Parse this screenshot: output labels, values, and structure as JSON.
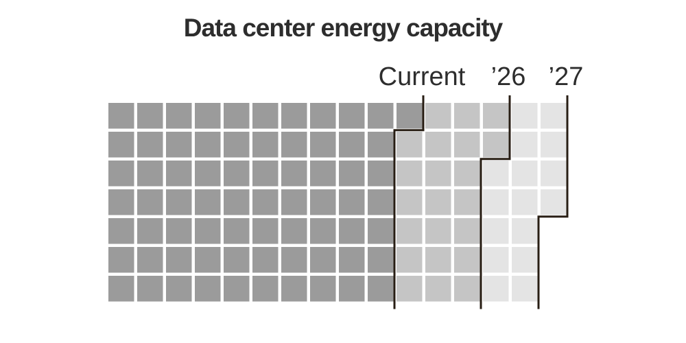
{
  "title": "Data center energy capacity",
  "colors": {
    "background": "#ffffff",
    "text": "#2d2d2d",
    "boundary_line": "#281e14",
    "current": "#9b9b9b",
    "y2026": "#c5c5c5",
    "y2027": "#e4e4e4"
  },
  "chart_data": {
    "type": "waffle",
    "title": "Data center energy capacity",
    "grid": {
      "rows": 7,
      "columns": 16
    },
    "legend_position": "top",
    "series": [
      {
        "key": "current",
        "label": "Current",
        "color_key": "current",
        "cells_added": 71,
        "cells_cumulative": 71,
        "per_row_cumulative_columns": [
          11,
          10,
          10,
          10,
          10,
          10,
          10
        ]
      },
      {
        "key": "y2026",
        "label": "’26",
        "color_key": "y2026",
        "cells_added": 22,
        "cells_cumulative": 93,
        "per_row_cumulative_columns": [
          14,
          14,
          13,
          13,
          13,
          13,
          13
        ]
      },
      {
        "key": "y2027",
        "label": "’27",
        "color_key": "y2027",
        "cells_added": 16,
        "cells_cumulative": 109,
        "per_row_cumulative_columns": [
          16,
          16,
          16,
          16,
          15,
          15,
          15
        ]
      }
    ]
  }
}
